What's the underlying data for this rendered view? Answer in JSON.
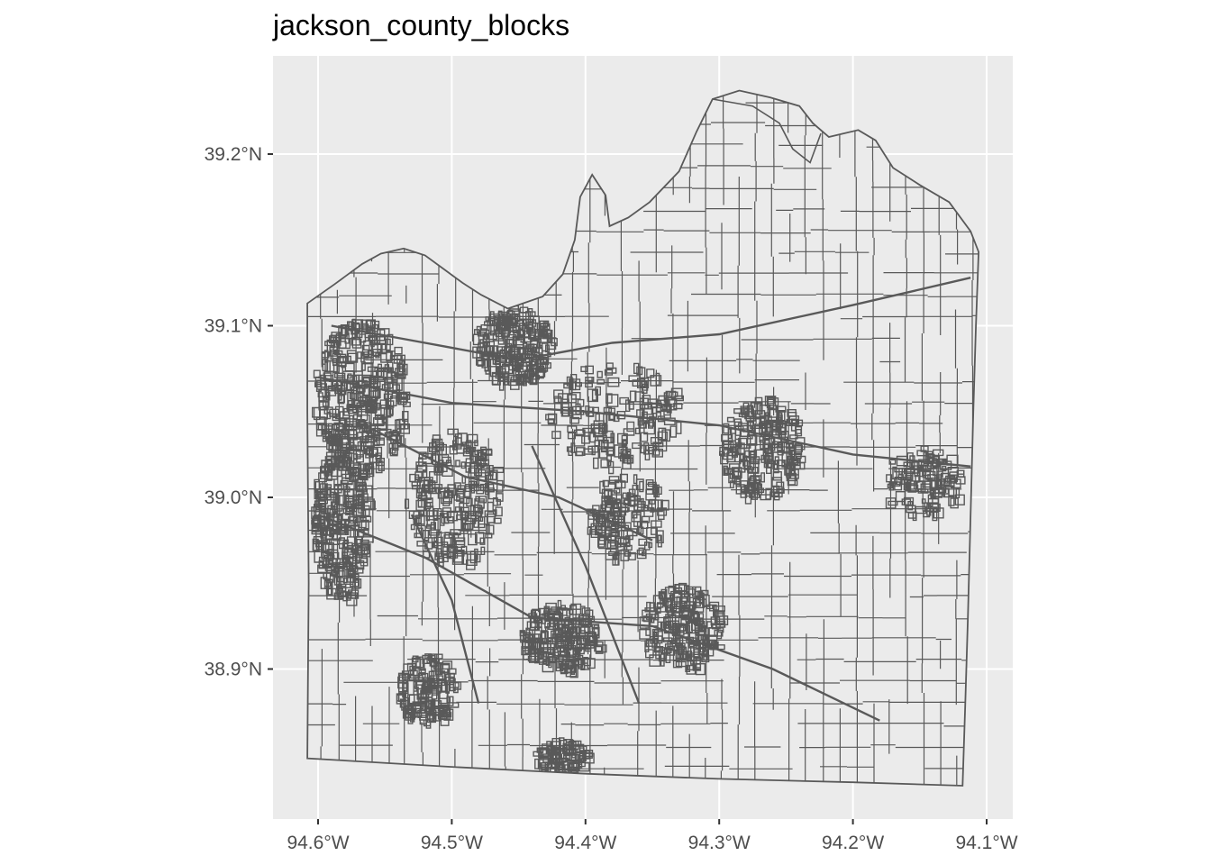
{
  "title": "jackson_county_blocks",
  "map": {
    "panel_background": "#ebebeb",
    "gridline_color": "#ffffff",
    "polygon_fill": "#ebebeb",
    "polygon_stroke": "#595959",
    "x_axis": {
      "ticks": [
        {
          "value": -94.6,
          "label": "94.6°W"
        },
        {
          "value": -94.5,
          "label": "94.5°W"
        },
        {
          "value": -94.4,
          "label": "94.4°W"
        },
        {
          "value": -94.3,
          "label": "94.3°W"
        },
        {
          "value": -94.2,
          "label": "94.2°W"
        },
        {
          "value": -94.1,
          "label": "94.1°W"
        }
      ]
    },
    "y_axis": {
      "ticks": [
        {
          "value": 39.2,
          "label": "39.2°N"
        },
        {
          "value": 39.1,
          "label": "39.1°N"
        },
        {
          "value": 39.0,
          "label": "39.0°N"
        },
        {
          "value": 38.9,
          "label": "38.9°N"
        }
      ]
    },
    "county_outline": [
      [
        -94.608,
        39.113
      ],
      [
        -94.588,
        39.124
      ],
      [
        -94.567,
        39.136
      ],
      [
        -94.553,
        39.142
      ],
      [
        -94.536,
        39.145
      ],
      [
        -94.52,
        39.141
      ],
      [
        -94.506,
        39.133
      ],
      [
        -94.492,
        39.125
      ],
      [
        -94.478,
        39.118
      ],
      [
        -94.458,
        39.11
      ],
      [
        -94.432,
        39.117
      ],
      [
        -94.417,
        39.13
      ],
      [
        -94.408,
        39.15
      ],
      [
        -94.404,
        39.175
      ],
      [
        -94.395,
        39.188
      ],
      [
        -94.385,
        39.176
      ],
      [
        -94.382,
        39.158
      ],
      [
        -94.368,
        39.163
      ],
      [
        -94.352,
        39.172
      ],
      [
        -94.33,
        39.19
      ],
      [
        -94.317,
        39.213
      ],
      [
        -94.305,
        39.232
      ],
      [
        -94.285,
        39.237
      ],
      [
        -94.262,
        39.233
      ],
      [
        -94.24,
        39.228
      ],
      [
        -94.23,
        39.218
      ],
      [
        -94.218,
        39.21
      ],
      [
        -94.196,
        39.214
      ],
      [
        -94.183,
        39.208
      ],
      [
        -94.17,
        39.192
      ],
      [
        -94.15,
        39.182
      ],
      [
        -94.128,
        39.172
      ],
      [
        -94.112,
        39.155
      ],
      [
        -94.106,
        39.143
      ],
      [
        -94.108,
        39.1
      ],
      [
        -94.11,
        39.05
      ],
      [
        -94.112,
        38.99
      ],
      [
        -94.114,
        38.93
      ],
      [
        -94.116,
        38.88
      ],
      [
        -94.118,
        38.832
      ],
      [
        -94.2,
        38.834
      ],
      [
        -94.3,
        38.836
      ],
      [
        -94.4,
        38.839
      ],
      [
        -94.5,
        38.843
      ],
      [
        -94.608,
        38.848
      ],
      [
        -94.607,
        38.95
      ],
      [
        -94.608,
        39.05
      ]
    ],
    "river_bend": [
      [
        -94.305,
        39.232
      ],
      [
        -94.275,
        39.228
      ],
      [
        -94.255,
        39.218
      ],
      [
        -94.245,
        39.203
      ],
      [
        -94.232,
        39.195
      ],
      [
        -94.224,
        39.212
      ]
    ],
    "highways": [
      [
        [
          -94.6,
          39.07
        ],
        [
          -94.5,
          39.055
        ],
        [
          -94.4,
          39.05
        ],
        [
          -94.3,
          39.042
        ],
        [
          -94.2,
          39.025
        ],
        [
          -94.112,
          39.018
        ]
      ],
      [
        [
          -94.6,
          38.99
        ],
        [
          -94.52,
          38.965
        ],
        [
          -94.44,
          38.93
        ],
        [
          -94.35,
          38.925
        ],
        [
          -94.26,
          38.9
        ],
        [
          -94.18,
          38.87
        ]
      ],
      [
        [
          -94.56,
          39.04
        ],
        [
          -94.49,
          39.012
        ],
        [
          -94.42,
          39.0
        ],
        [
          -94.35,
          38.975
        ]
      ],
      [
        [
          -94.59,
          39.1
        ],
        [
          -94.52,
          39.09
        ],
        [
          -94.45,
          39.08
        ],
        [
          -94.38,
          39.09
        ],
        [
          -94.3,
          39.095
        ],
        [
          -94.2,
          39.112
        ],
        [
          -94.112,
          39.128
        ]
      ],
      [
        [
          -94.53,
          38.99
        ],
        [
          -94.5,
          38.94
        ],
        [
          -94.48,
          38.88
        ]
      ],
      [
        [
          -94.44,
          39.03
        ],
        [
          -94.4,
          38.96
        ],
        [
          -94.36,
          38.88
        ]
      ]
    ],
    "dense_areas": [
      {
        "lon": -94.57,
        "lat": 39.06,
        "rx": 0.035,
        "ry": 0.045,
        "density": 60
      },
      {
        "lon": -94.585,
        "lat": 38.99,
        "rx": 0.02,
        "ry": 0.05,
        "density": 50
      },
      {
        "lon": -94.455,
        "lat": 39.09,
        "rx": 0.03,
        "ry": 0.022,
        "density": 40
      },
      {
        "lon": -94.5,
        "lat": 39.0,
        "rx": 0.035,
        "ry": 0.04,
        "density": 40
      },
      {
        "lon": -94.42,
        "lat": 38.92,
        "rx": 0.03,
        "ry": 0.02,
        "density": 35
      },
      {
        "lon": -94.33,
        "lat": 38.925,
        "rx": 0.03,
        "ry": 0.025,
        "density": 35
      },
      {
        "lon": -94.27,
        "lat": 39.03,
        "rx": 0.03,
        "ry": 0.03,
        "density": 35
      },
      {
        "lon": -94.52,
        "lat": 38.89,
        "rx": 0.022,
        "ry": 0.02,
        "density": 25
      },
      {
        "lon": -94.37,
        "lat": 38.99,
        "rx": 0.03,
        "ry": 0.025,
        "density": 25
      },
      {
        "lon": -94.15,
        "lat": 39.01,
        "rx": 0.03,
        "ry": 0.02,
        "density": 20
      },
      {
        "lon": -94.38,
        "lat": 39.05,
        "rx": 0.05,
        "ry": 0.03,
        "density": 30
      },
      {
        "lon": -94.42,
        "lat": 38.85,
        "rx": 0.02,
        "ry": 0.01,
        "density": 15
      }
    ]
  }
}
